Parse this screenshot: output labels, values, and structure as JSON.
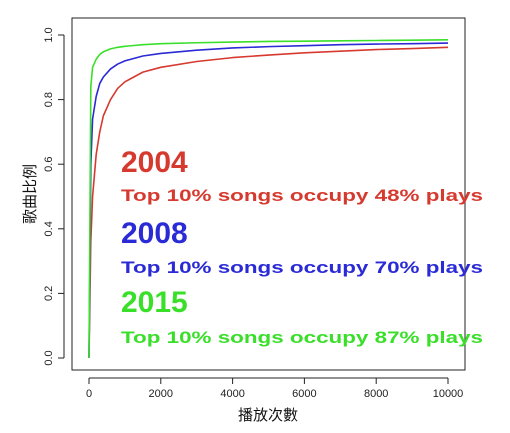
{
  "chart_data": {
    "type": "line",
    "xlabel": "播放次數",
    "ylabel": "歌曲比例",
    "xlim": [
      0,
      10000
    ],
    "ylim": [
      0,
      1.0
    ],
    "x_ticks": [
      "0",
      "2000",
      "4000",
      "6000",
      "8000",
      "10000"
    ],
    "y_ticks": [
      "0.0",
      "0.2",
      "0.4",
      "0.6",
      "0.8",
      "1.0"
    ],
    "grid": false,
    "series": [
      {
        "name": "2004",
        "color": "#d63a2f",
        "x": [
          0,
          50,
          100,
          200,
          300,
          400,
          600,
          800,
          1000,
          1500,
          2000,
          3000,
          4000,
          5000,
          6000,
          7000,
          8000,
          9000,
          10000
        ],
        "y": [
          0.0,
          0.36,
          0.5,
          0.63,
          0.7,
          0.75,
          0.8,
          0.835,
          0.855,
          0.885,
          0.9,
          0.918,
          0.93,
          0.938,
          0.945,
          0.95,
          0.955,
          0.958,
          0.962
        ]
      },
      {
        "name": "2008",
        "color": "#2a2ad6",
        "x": [
          0,
          50,
          100,
          200,
          300,
          400,
          600,
          800,
          1000,
          1500,
          2000,
          3000,
          4000,
          5000,
          6000,
          7000,
          8000,
          9000,
          10000
        ],
        "y": [
          0.0,
          0.6,
          0.74,
          0.81,
          0.85,
          0.87,
          0.895,
          0.91,
          0.92,
          0.935,
          0.943,
          0.953,
          0.96,
          0.964,
          0.967,
          0.97,
          0.972,
          0.973,
          0.975
        ]
      },
      {
        "name": "2015",
        "color": "#3adf2a",
        "x": [
          0,
          50,
          100,
          200,
          300,
          400,
          600,
          800,
          1000,
          1500,
          2000,
          3000,
          4000,
          5000,
          6000,
          7000,
          8000,
          9000,
          10000
        ],
        "y": [
          0.0,
          0.84,
          0.9,
          0.925,
          0.94,
          0.948,
          0.957,
          0.962,
          0.965,
          0.97,
          0.973,
          0.976,
          0.978,
          0.98,
          0.981,
          0.982,
          0.983,
          0.984,
          0.985
        ]
      }
    ],
    "annotations": [
      {
        "year": "2004",
        "text": "Top 10% songs occupy 48% plays",
        "color": "#d63a2f"
      },
      {
        "year": "2008",
        "text": "Top 10% songs occupy 70% plays",
        "color": "#2a2ad6"
      },
      {
        "year": "2015",
        "text": "Top 10% songs occupy 87% plays",
        "color": "#3adf2a"
      }
    ]
  }
}
